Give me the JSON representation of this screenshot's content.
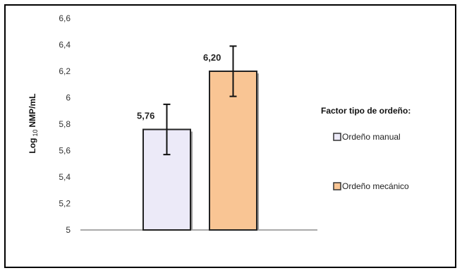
{
  "chart_data": {
    "type": "bar",
    "ylabel_prefix": "Log",
    "ylabel_sub": "10",
    "ylabel_suffix": "NMP/mL",
    "ylim": [
      5,
      6.6
    ],
    "yticks": [
      "5",
      "5,2",
      "5,4",
      "5,6",
      "5,8",
      "6",
      "6,2",
      "6,4",
      "6,6"
    ],
    "ytick_values": [
      5,
      5.2,
      5.4,
      5.6,
      5.8,
      6.0,
      6.2,
      6.4,
      6.6
    ],
    "grid": false,
    "legend_position": "right",
    "legend_title": "Factor tipo de ordeño:",
    "series": [
      {
        "name": "Ordeño manual",
        "value": 5.76,
        "label": "5,76",
        "error_low": 5.57,
        "error_high": 5.95,
        "color": "#ECEAF8"
      },
      {
        "name": "Ordeño mecánico",
        "value": 6.2,
        "label": "6,20",
        "error_low": 6.01,
        "error_high": 6.39,
        "color": "#F9C594"
      }
    ]
  }
}
